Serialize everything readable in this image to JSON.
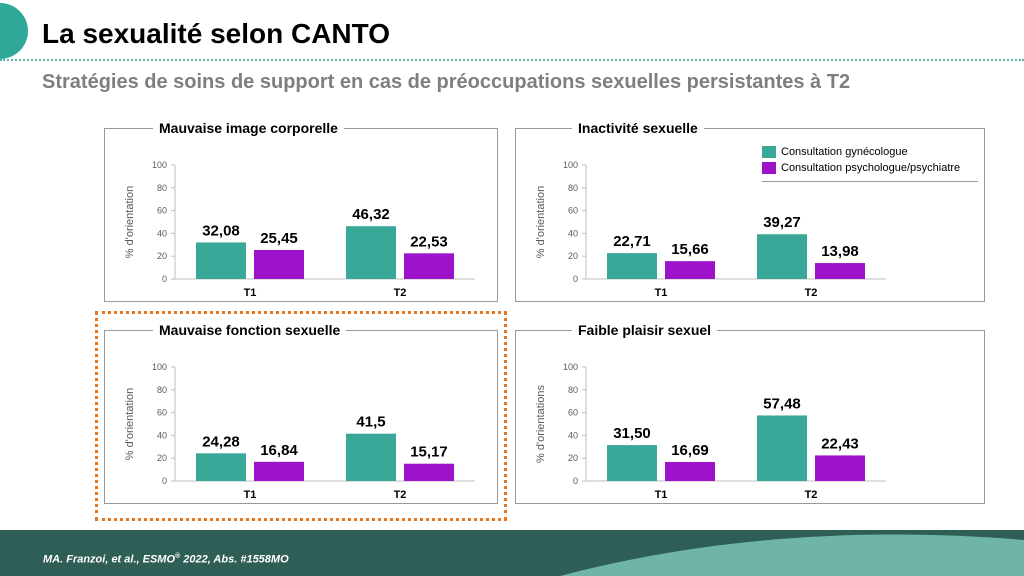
{
  "slide": {
    "title": "La sexualité selon CANTO",
    "subtitle": "Stratégies de soins de support en cas de préoccupations sexuelles persistantes à T2",
    "footer_main": "MA. Franzoi, et al., ESMO",
    "footer_sup": "®",
    "footer_rest": " 2022, Abs. #1558MO"
  },
  "colors": {
    "gynecologue": "#3aa899",
    "psychologue": "#9c13c9",
    "accent": "#2fa898",
    "highlight_border": "#e8761e",
    "footer_dark": "#2e5e55",
    "footer_light": "#6fb5a6"
  },
  "legend": {
    "items": [
      "Consultation gynécologue",
      "Consultation psychologue/psychiatre"
    ]
  },
  "chart_data": [
    {
      "type": "bar",
      "title": "Mauvaise image corporelle",
      "ylabel": "% d'orientation",
      "categories": [
        "T1",
        "T2"
      ],
      "ylim": [
        0,
        100
      ],
      "yticks": [
        "0",
        "20",
        "40",
        "60",
        "80",
        "100"
      ],
      "series": [
        {
          "name": "Consultation gynécologue",
          "values": [
            32.08,
            46.32
          ],
          "labels": [
            "32,08",
            "46,32"
          ]
        },
        {
          "name": "Consultation psychologue/psychiatre",
          "values": [
            25.45,
            22.53
          ],
          "labels": [
            "25,45",
            "22,53"
          ]
        }
      ]
    },
    {
      "type": "bar",
      "title": "Inactivité sexuelle",
      "ylabel": "% d'orientation",
      "categories": [
        "T1",
        "T2"
      ],
      "ylim": [
        0,
        100
      ],
      "yticks": [
        "0",
        "20",
        "40",
        "60",
        "80",
        "100"
      ],
      "series": [
        {
          "name": "Consultation gynécologue",
          "values": [
            22.71,
            39.27
          ],
          "labels": [
            "22,71",
            "39,27"
          ]
        },
        {
          "name": "Consultation psychologue/psychiatre",
          "values": [
            15.66,
            13.98
          ],
          "labels": [
            "15,66",
            "13,98"
          ]
        }
      ]
    },
    {
      "type": "bar",
      "title": "Mauvaise fonction sexuelle",
      "ylabel": "% d'orientation",
      "categories": [
        "T1",
        "T2"
      ],
      "ylim": [
        0,
        100
      ],
      "yticks": [
        "0",
        "20",
        "40",
        "60",
        "80",
        "100"
      ],
      "series": [
        {
          "name": "Consultation gynécologue",
          "values": [
            24.28,
            41.5
          ],
          "labels": [
            "24,28",
            "41,5"
          ]
        },
        {
          "name": "Consultation psychologue/psychiatre",
          "values": [
            16.84,
            15.17
          ],
          "labels": [
            "16,84",
            "15,17"
          ]
        }
      ]
    },
    {
      "type": "bar",
      "title": "Faible plaisir sexuel",
      "ylabel": "% d'orientations",
      "categories": [
        "T1",
        "T2"
      ],
      "ylim": [
        0,
        100
      ],
      "yticks": [
        "0",
        "20",
        "40",
        "60",
        "80",
        "100"
      ],
      "series": [
        {
          "name": "Consultation gynécologue",
          "values": [
            31.5,
            57.48
          ],
          "labels": [
            "31,50",
            "57,48"
          ]
        },
        {
          "name": "Consultation psychologue/psychiatre",
          "values": [
            16.69,
            22.43
          ],
          "labels": [
            "16,69",
            "22,43"
          ]
        }
      ]
    }
  ]
}
